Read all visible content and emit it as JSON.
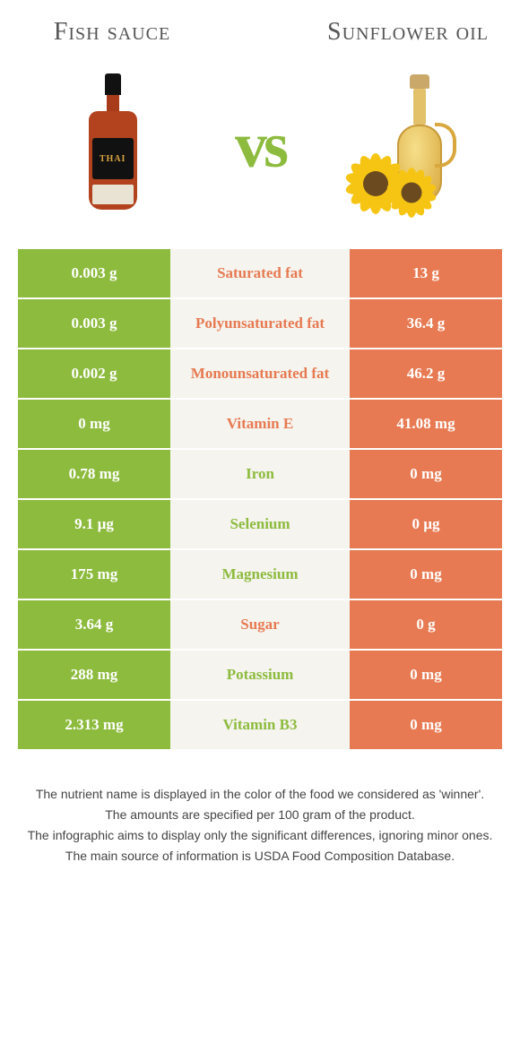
{
  "titles": {
    "left": "Fish sauce",
    "right": "Sunflower oil",
    "vs": "vs"
  },
  "colors": {
    "green": "#8dbb3e",
    "orange": "#e77a52",
    "mid_bg": "#f5f4ee"
  },
  "rows": [
    {
      "left": "0.003 g",
      "label": "Saturated fat",
      "right": "13 g",
      "winner": "orange"
    },
    {
      "left": "0.003 g",
      "label": "Polyunsaturated fat",
      "right": "36.4 g",
      "winner": "orange"
    },
    {
      "left": "0.002 g",
      "label": "Monounsaturated fat",
      "right": "46.2 g",
      "winner": "orange"
    },
    {
      "left": "0 mg",
      "label": "Vitamin E",
      "right": "41.08 mg",
      "winner": "orange"
    },
    {
      "left": "0.78 mg",
      "label": "Iron",
      "right": "0 mg",
      "winner": "green"
    },
    {
      "left": "9.1 µg",
      "label": "Selenium",
      "right": "0 µg",
      "winner": "green"
    },
    {
      "left": "175 mg",
      "label": "Magnesium",
      "right": "0 mg",
      "winner": "green"
    },
    {
      "left": "3.64 g",
      "label": "Sugar",
      "right": "0 g",
      "winner": "orange"
    },
    {
      "left": "288 mg",
      "label": "Potassium",
      "right": "0 mg",
      "winner": "green"
    },
    {
      "left": "2.313 mg",
      "label": "Vitamin B3",
      "right": "0 mg",
      "winner": "green"
    }
  ],
  "footer": [
    "The nutrient name is displayed in the color of the food we considered as 'winner'.",
    "The amounts are specified per 100 gram of the product.",
    "The infographic aims to display only the significant differences, ignoring minor ones.",
    "The main source of information is USDA Food Composition Database."
  ]
}
